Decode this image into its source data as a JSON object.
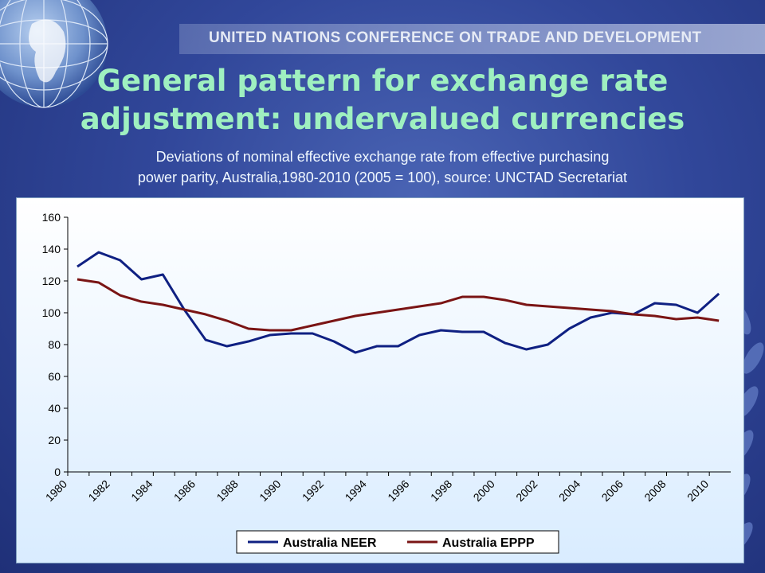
{
  "header": {
    "organization": "UNITED NATIONS CONFERENCE ON TRADE AND DEVELOPMENT"
  },
  "slide": {
    "title_line1": "General pattern for exchange rate",
    "title_line2": "adjustment: undervalued currencies",
    "subtitle_line1": "Deviations of nominal effective exchange rate from effective purchasing",
    "subtitle_line2": "power parity, Australia,1980-2010 (2005 = 100), source: UNCTAD Secretariat"
  },
  "icons": [
    "globe-icon",
    "laurel-wreath-icon"
  ],
  "colors": {
    "title": "#9ff0c0",
    "neer": "#0f2082",
    "eppp": "#7a1414"
  },
  "chart_data": {
    "type": "line",
    "x": [
      1980,
      1981,
      1982,
      1983,
      1984,
      1985,
      1986,
      1987,
      1988,
      1989,
      1990,
      1991,
      1992,
      1993,
      1994,
      1995,
      1996,
      1997,
      1998,
      1999,
      2000,
      2001,
      2002,
      2003,
      2004,
      2005,
      2006,
      2007,
      2008,
      2009,
      2010
    ],
    "x_tick_labels": [
      "1980",
      "1982",
      "1984",
      "1986",
      "1988",
      "1990",
      "1992",
      "1994",
      "1996",
      "1998",
      "2000",
      "2002",
      "2004",
      "2006",
      "2008",
      "2010"
    ],
    "y_tick_labels": [
      "0",
      "20",
      "40",
      "60",
      "80",
      "100",
      "120",
      "140",
      "160"
    ],
    "ylim": [
      0,
      160
    ],
    "grid": false,
    "legend_position": "bottom",
    "series": [
      {
        "name": "Australia NEER",
        "values": [
          129,
          138,
          133,
          121,
          124,
          102,
          83,
          79,
          82,
          86,
          87,
          87,
          82,
          75,
          79,
          79,
          86,
          89,
          88,
          88,
          81,
          77,
          80,
          90,
          97,
          100,
          99,
          106,
          105,
          100,
          112
        ]
      },
      {
        "name": "Australia EPPP",
        "values": [
          121,
          119,
          111,
          107,
          105,
          102,
          99,
          95,
          90,
          89,
          89,
          92,
          95,
          98,
          100,
          102,
          104,
          106,
          110,
          110,
          108,
          105,
          104,
          103,
          102,
          101,
          99,
          98,
          96,
          97,
          95
        ]
      }
    ]
  }
}
